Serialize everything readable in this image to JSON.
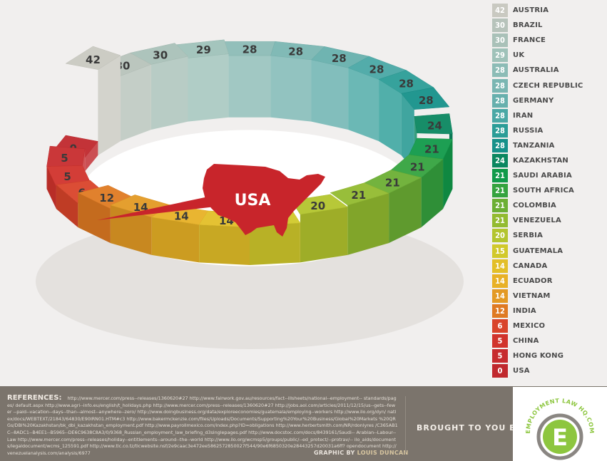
{
  "chart_data": {
    "type": "bar",
    "chart_style": "3d-ring",
    "center_label": "USA",
    "categories": [
      "Austria",
      "Brazil",
      "France",
      "UK",
      "Australia",
      "Czech Republic",
      "Germany",
      "Iran",
      "Russia",
      "Tanzania",
      "Kazakhstan",
      "Saudi Arabia",
      "South Africa",
      "Colombia",
      "Venezuela",
      "Serbia",
      "Guatemala",
      "Canada",
      "Ecuador",
      "Vietnam",
      "India",
      "Mexico",
      "China",
      "Hong Kong",
      "USA"
    ],
    "legend_labels": [
      "AUSTRIA",
      "BRAZIL",
      "FRANCE",
      "UK",
      "AUSTRALIA",
      "CZECH REPUBLIC",
      "GERMANY",
      "IRAN",
      "RUSSIA",
      "TANZANIA",
      "KAZAKHSTAN",
      "SAUDI ARABIA",
      "SOUTH AFRICA",
      "COLOMBIA",
      "VENEZUELA",
      "SERBIA",
      "GUATEMALA",
      "CANADA",
      "ECUADOR",
      "VIETNAM",
      "INDIA",
      "MEXICO",
      "CHINA",
      "HONG KONG",
      "USA"
    ],
    "values": [
      42,
      30,
      30,
      29,
      28,
      28,
      28,
      28,
      28,
      28,
      24,
      21,
      21,
      21,
      21,
      20,
      15,
      14,
      14,
      14,
      12,
      6,
      5,
      5,
      0
    ],
    "colors": [
      "#c9c9c1",
      "#b7c3bb",
      "#a9c1b8",
      "#9fc2b9",
      "#8cbcb6",
      "#7ab6b2",
      "#67b0ad",
      "#4aa8a5",
      "#2b9d97",
      "#16918a",
      "#0b8760",
      "#119a4a",
      "#35a33f",
      "#6caf34",
      "#93bb30",
      "#b3c52e",
      "#d1c92b",
      "#e3bf28",
      "#e8b126",
      "#e39a24",
      "#df7a22",
      "#d9442a",
      "#d1332c",
      "#c72c2f",
      "#c0282d"
    ],
    "legend": "right"
  },
  "footer": {
    "references_title": "REFERENCES:",
    "references_text": "http://www.mercer.com/press--releases/1360620#27 http://www.fairwork.gov.au/resources/fact--illsheets/national--employment-- standards/pages/ default.aspx http://www.agri--info.eu/english/t_holidays.php http://www.mercer.com/press--releases/1360620#27 http://jobs.aol.com/articles/2011/12/15/us--gets--fewer --paid--vacation--days--than--almost--anywhere--zero/ http://www.doingbusiness.org/data/exploreeconomies/guatemala/employing--workers http://www.ilo.org/dyn/ natlex/docs/WEBTEXT/21843/64830/E90IRN01.HTM#c3 http://www.bakermckenzie.com/files/Uploads/Documents/Supporting%20Your%20Business/Global%20Markets %20QRGs/DBI%20Kazakhstan/bk_dbi_kazakhstan_employment.pdf http://www.payrollmexico.com/index.php?ID=obligations http://www.herbertsmith.com/NR/rdonlyres /C365AB1C--8ADC1--B4EE1--B5965--DE6C9638C8A3/0/9368_Russian_employment_law_briefing_d3singlepages.pdf http://www.docstoc.com/docs/8439161/Saudi-- Arabian--Labour--Law http://www.mercer.com/press--releases/holiday--entitlements--around--the--world http://www.ilo.org/wcmsp5/groups/public/--ed_protect/--protrav/-- ilo_aids/documents/legaldocument/wcms_125591.pdf http://www.tlc.co.tz/tlcwebsite.nsf/2e9caac3e472ee5862572850027f544/90e6f6850320e28443257d20031a6ff? opendocument http://venezuelanalysis.com/analysis/6977",
    "graphic_by_label": "GRAPHIC BY",
    "graphic_by_author": "LOUIS DUNCAN",
    "brought_to_you_by": "BROUGHT TO YOU BY",
    "logo_text": "EMPLOYMENT LAW HQ.COM",
    "logo_letter": "E"
  }
}
